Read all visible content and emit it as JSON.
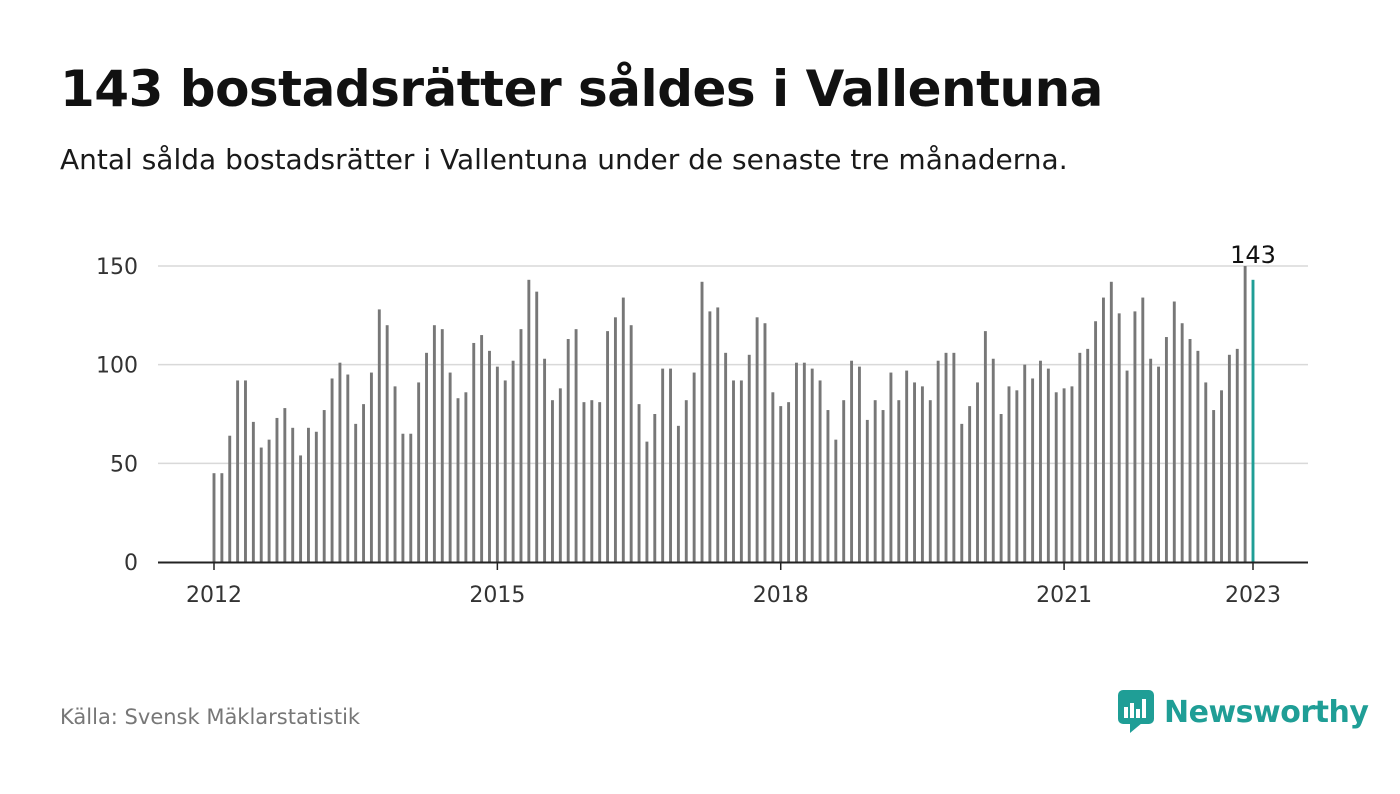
{
  "header": {
    "title": "143 bostadsrätter såldes i Vallentuna",
    "subtitle": "Antal sålda bostadsrätter i Vallentuna under de senaste tre månaderna."
  },
  "footer": {
    "source": "Källa: Svensk Mäklarstatistik",
    "brand": "Newsworthy"
  },
  "colors": {
    "bar": "#777777",
    "highlight": "#1f9e96",
    "grid": "#d9d9d9",
    "axis": "#222222"
  },
  "chart_data": {
    "type": "bar",
    "title": "143 bostadsrätter såldes i Vallentuna",
    "xlabel": "",
    "ylabel": "",
    "ylim": [
      0,
      150
    ],
    "yticks": [
      0,
      50,
      100,
      150
    ],
    "xticks": [
      "2012",
      "2015",
      "2018",
      "2021",
      "2023"
    ],
    "x_start": "2012-01",
    "x_end": "2023-01",
    "grid": true,
    "annotation": "143",
    "series": [
      {
        "values": [
          45,
          45,
          64,
          92,
          92,
          71,
          58,
          62,
          73,
          78,
          68,
          54,
          68,
          66,
          77,
          93,
          101,
          95,
          70,
          80,
          96,
          128,
          120,
          89,
          65,
          65,
          91,
          106,
          120,
          118,
          96,
          83,
          86,
          111,
          115,
          107,
          99,
          92,
          102,
          118,
          143,
          137,
          103,
          82,
          88,
          113,
          118,
          81,
          82,
          81,
          117,
          124,
          134,
          120,
          80,
          61,
          75,
          98,
          98,
          69,
          82,
          96,
          142,
          127,
          129,
          106,
          92,
          92,
          105,
          124,
          121,
          86,
          79,
          81,
          101,
          101,
          98,
          92,
          77,
          62,
          82,
          102,
          99,
          72,
          82,
          77,
          96,
          82,
          97,
          91,
          89,
          82,
          102,
          106,
          106,
          70,
          79,
          91,
          117,
          103,
          75,
          89,
          87,
          100,
          93,
          102,
          98,
          86,
          88,
          89,
          106,
          108,
          122,
          134,
          142,
          126,
          97,
          127,
          134,
          103,
          99,
          114,
          132,
          121,
          113,
          107,
          91,
          77,
          87,
          105,
          108,
          150,
          143
        ]
      }
    ]
  }
}
